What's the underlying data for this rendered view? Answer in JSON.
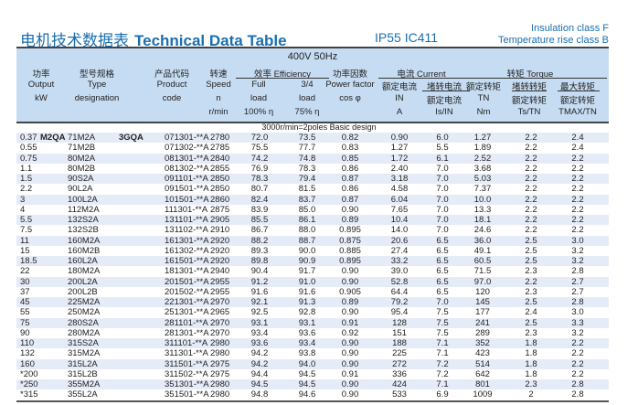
{
  "header": {
    "title_cn": "电机技术数据表",
    "title_en": "Technical Data Table",
    "protection": "IP55  IC411",
    "insulation": "Insulation class F",
    "temp_rise": "Temperature rise class B",
    "voltage": "400V 50Hz"
  },
  "columns": {
    "output": [
      "功率",
      "Output",
      "kW"
    ],
    "type": [
      "型号规格",
      "Type",
      "designation"
    ],
    "code": [
      "产品代码",
      "Product",
      "code"
    ],
    "speed": [
      "转速",
      "Speed",
      "n",
      "r/min"
    ],
    "efficiency": "效率 Efficiency",
    "eff_full": [
      "Full",
      "load",
      "100% η"
    ],
    "eff_34": [
      "3/4",
      "load",
      "75% η"
    ],
    "pf": [
      "功率因数",
      "Power factor",
      "cos φ"
    ],
    "current": "电流 Current",
    "in": [
      "额定电流",
      "IN",
      "A"
    ],
    "isin": [
      "堵转电流",
      "额定电流",
      "Is/IN"
    ],
    "torque": "转矩 Torque",
    "tn": [
      "额定转矩",
      "TN",
      "Nm"
    ],
    "tstn": [
      "堵转转矩",
      "额定转矩",
      "Ts/TN"
    ],
    "tmax": [
      "最大转矩",
      "额定转矩",
      "TMAX/TN"
    ]
  },
  "section": "3000r/min=2poles Basic design",
  "series_labels": {
    "left": "M2QA",
    "right": "3GQA"
  },
  "rows": [
    [
      "0.37",
      "71M2A",
      "071301-**A",
      "2780",
      "72.0",
      "73.5",
      "0.82",
      "0.90",
      "6.0",
      "1.27",
      "2.2",
      "2.4"
    ],
    [
      "0.55",
      "71M2B",
      "071302-**A",
      "2785",
      "75.5",
      "77.7",
      "0.83",
      "1.27",
      "5.5",
      "1.89",
      "2.2",
      "2.4"
    ],
    [
      "0.75",
      "80M2A",
      "081301-**A",
      "2840",
      "74.2",
      "74.8",
      "0.85",
      "1.72",
      "6.1",
      "2.52",
      "2.2",
      "2.2"
    ],
    [
      "1.1",
      "80M2B",
      "081302-**A",
      "2855",
      "76.9",
      "78.3",
      "0.86",
      "2.40",
      "7.0",
      "3.68",
      "2.2",
      "2.2"
    ],
    [
      "1.5",
      "90S2A",
      "091101-**A",
      "2850",
      "78.3",
      "79.4",
      "0.87",
      "3.18",
      "7.0",
      "5.03",
      "2.2",
      "2.2"
    ],
    [
      "2.2",
      "90L2A",
      "091501-**A",
      "2850",
      "80.7",
      "81.5",
      "0.86",
      "4.58",
      "7.0",
      "7.37",
      "2.2",
      "2.2"
    ],
    [
      "3",
      "100L2A",
      "101501-**A",
      "2860",
      "82.4",
      "83.7",
      "0.87",
      "6.04",
      "7.0",
      "10.0",
      "2.2",
      "2.2"
    ],
    [
      "4",
      "112M2A",
      "111301-**A",
      "2875",
      "83.9",
      "85.0",
      "0.90",
      "7.65",
      "7.0",
      "13.3",
      "2.2",
      "2.2"
    ],
    [
      "5.5",
      "132S2A",
      "131101-**A",
      "2905",
      "85.5",
      "86.1",
      "0.89",
      "10.4",
      "7.0",
      "18.1",
      "2.2",
      "2.2"
    ],
    [
      "7.5",
      "132S2B",
      "131102-**A",
      "2910",
      "86.7",
      "88.0",
      "0.895",
      "14.0",
      "7.0",
      "24.6",
      "2.2",
      "2.2"
    ],
    [
      "11",
      "160M2A",
      "161301-**A",
      "2920",
      "88.2",
      "88.7",
      "0.875",
      "20.6",
      "6.5",
      "36.0",
      "2.5",
      "3.0"
    ],
    [
      "15",
      "160M2B",
      "161302-**A",
      "2920",
      "89.3",
      "90.0",
      "0.885",
      "27.4",
      "6.5",
      "49.1",
      "2.5",
      "3.2"
    ],
    [
      "18.5",
      "160L2A",
      "161501-**A",
      "2920",
      "89.8",
      "90.9",
      "0.895",
      "33.2",
      "6.5",
      "60.5",
      "2.5",
      "3.2"
    ],
    [
      "22",
      "180M2A",
      "181301-**A",
      "2940",
      "90.4",
      "91.7",
      "0.90",
      "39.0",
      "6.5",
      "71.5",
      "2.3",
      "2.8"
    ],
    [
      "30",
      "200L2A",
      "201501-**A",
      "2955",
      "91.2",
      "91.0",
      "0.90",
      "52.8",
      "6.5",
      "97.0",
      "2.2",
      "2.7"
    ],
    [
      "37",
      "200L2B",
      "201502-**A",
      "2955",
      "91.6",
      "91.6",
      "0.905",
      "64.4",
      "6.5",
      "120",
      "2.3",
      "2.7"
    ],
    [
      "45",
      "225M2A",
      "221301-**A",
      "2970",
      "92.1",
      "91.3",
      "0.89",
      "79.2",
      "7.0",
      "145",
      "2.5",
      "2.8"
    ],
    [
      "55",
      "250M2A",
      "251301-**A",
      "2965",
      "92.5",
      "92.8",
      "0.90",
      "95.4",
      "7.5",
      "177",
      "2.4",
      "3.0"
    ],
    [
      "75",
      "280S2A",
      "281101-**A",
      "2970",
      "93.1",
      "93.1",
      "0.91",
      "128",
      "7.5",
      "241",
      "2.5",
      "3.3"
    ],
    [
      "90",
      "280M2A",
      "281301-**A",
      "2970",
      "93.4",
      "93.6",
      "0.92",
      "151",
      "7.5",
      "289",
      "2.3",
      "3.2"
    ],
    [
      "110",
      "315S2A",
      "311101-**A",
      "2980",
      "93.6",
      "93.4",
      "0.90",
      "188",
      "7.1",
      "352",
      "1.8",
      "2.2"
    ],
    [
      "132",
      "315M2A",
      "311301-**A",
      "2980",
      "94.2",
      "93.8",
      "0.90",
      "225",
      "7.1",
      "423",
      "1.8",
      "2.2"
    ],
    [
      "160",
      "315L2A",
      "311501-**A",
      "2975",
      "94.2",
      "94.0",
      "0.90",
      "272",
      "7.2",
      "514",
      "1.8",
      "2.2"
    ],
    [
      "*200",
      "315L2B",
      "311502-**A",
      "2975",
      "94.4",
      "94.5",
      "0.91",
      "336",
      "7.2",
      "642",
      "1.8",
      "2.2"
    ],
    [
      "*250",
      "355M2A",
      "351301-**A",
      "2980",
      "94.5",
      "94.5",
      "0.90",
      "424",
      "7.1",
      "801",
      "2.3",
      "2.8"
    ],
    [
      "*315",
      "355L2A",
      "351501-**A",
      "2980",
      "94.8",
      "94.6",
      "0.90",
      "533",
      "6.9",
      "1009",
      "2",
      "2.8"
    ]
  ]
}
